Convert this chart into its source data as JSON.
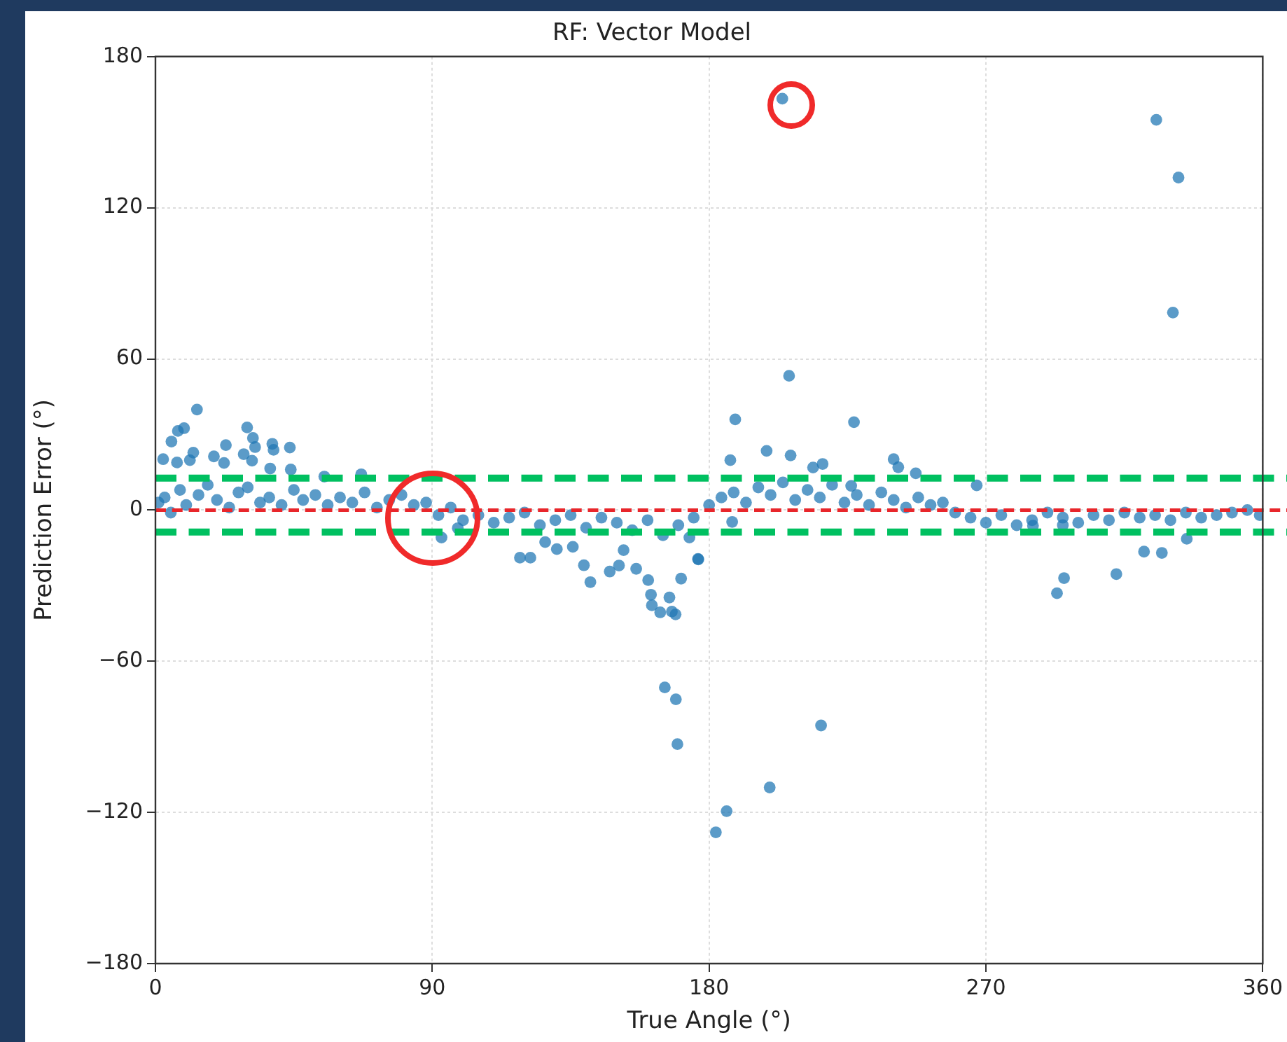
{
  "chart_data": {
    "type": "scatter",
    "title": "RF: Vector Model",
    "xlabel": "True Angle (°)",
    "ylabel": "Prediction Error (°)",
    "xlim": [
      0,
      360
    ],
    "xticks": [
      0,
      90,
      180,
      270,
      360
    ],
    "ylim": [
      -180,
      180
    ],
    "yticks": [
      {
        "value": -180,
        "label": "−180"
      },
      {
        "value": -120,
        "label": "−120"
      },
      {
        "value": -60,
        "label": "−60"
      },
      0,
      60,
      120,
      180
    ],
    "grid": true,
    "legend": false,
    "marker": "circle",
    "series": [
      {
        "color": "#1f77b4",
        "x": [
          203.8,
          325.4,
          332.6,
          330.8,
          206,
          188.5,
          227.1,
          13.5,
          165.6,
          169.2,
          169.7,
          216.4,
          185.7,
          182.2,
          199.7,
          293.1,
          295.4,
          312.4,
          321.4,
          327.2,
          335.3,
          267,
          198.7,
          206.5,
          186.9,
          213.8,
          216.9,
          240,
          241.5,
          247.2,
          226.2,
          176.4,
          187.5,
          285.3,
          295,
          5.2,
          7.3,
          9.3,
          2.5,
          29.8,
          31.7,
          32.4,
          22.9,
          38,
          38.4,
          43.7,
          11.2,
          19,
          28.7,
          22.3,
          7,
          12.3,
          31.4,
          37.3,
          44,
          66.9,
          54.9,
          118.5,
          121.9,
          126.7,
          130.5,
          135.7,
          139.3,
          141.4,
          147.7,
          150.7,
          152.2,
          156.3,
          160.2,
          161.1,
          161.4,
          164.1,
          167.1,
          167.9,
          169.1,
          170.9,
          176.5,
          173.6,
          93,
          98.3,
          1,
          3,
          5,
          8,
          10,
          14,
          17,
          20,
          24,
          27,
          30,
          34,
          37,
          41,
          45,
          48,
          52,
          56,
          60,
          64,
          68,
          72,
          76,
          80,
          84,
          88,
          92,
          96,
          100,
          105,
          110,
          115,
          120,
          125,
          130,
          135,
          140,
          145,
          150,
          155,
          160,
          165,
          170,
          175,
          180,
          184,
          188,
          192,
          196,
          200,
          204,
          208,
          212,
          216,
          220,
          224,
          228,
          232,
          236,
          240,
          244,
          248,
          252,
          256,
          260,
          265,
          270,
          275,
          280,
          285,
          290,
          295,
          300,
          305,
          310,
          315,
          320,
          325,
          330,
          335,
          340,
          345,
          350,
          355,
          359
        ],
        "values": [
          163.3,
          154.9,
          132,
          78.4,
          53.3,
          36,
          34.9,
          39.9,
          -70.4,
          -75.1,
          -92.9,
          -85.5,
          -119.5,
          -127.9,
          -110.1,
          -33,
          -27,
          -25.4,
          -16.5,
          -17,
          -11.4,
          9.8,
          23.5,
          21.7,
          19.8,
          16.9,
          18.3,
          20.2,
          17,
          14.6,
          9.6,
          -19.4,
          -4.7,
          -6.2,
          -6,
          27.2,
          31.4,
          32.5,
          20.2,
          32.8,
          28.6,
          25,
          25.8,
          26.3,
          23.9,
          24.8,
          19.8,
          21.3,
          22.2,
          18.7,
          18.9,
          22.8,
          19.6,
          16.5,
          16.1,
          14.2,
          13.3,
          -18.9,
          -18.9,
          -12.7,
          -15.5,
          -14.6,
          -21.9,
          -28.6,
          -24.4,
          -22,
          -15.9,
          -23.3,
          -27.8,
          -33.6,
          -37.8,
          -40.6,
          -34.7,
          -40.3,
          -41.4,
          -27.2,
          -19.6,
          -10.9,
          -10.9,
          -7.2,
          3,
          5,
          -1,
          8,
          2,
          6,
          10,
          4,
          1,
          7,
          9,
          3,
          5,
          2,
          8,
          4,
          6,
          2,
          5,
          3,
          7,
          1,
          4,
          6,
          2,
          3,
          -2,
          1,
          -4,
          -2,
          -5,
          -3,
          -1,
          -6,
          -4,
          -2,
          -7,
          -3,
          -5,
          -8,
          -4,
          -10,
          -6,
          -3,
          2,
          5,
          7,
          3,
          9,
          6,
          11,
          4,
          8,
          5,
          10,
          3,
          6,
          2,
          7,
          4,
          1,
          5,
          2,
          3,
          -1,
          -3,
          -5,
          -2,
          -6,
          -4,
          -1,
          -3,
          -5,
          -2,
          -4,
          -1,
          -3,
          -2,
          -4,
          -1,
          -3,
          -2,
          -1,
          0,
          -2
        ]
      }
    ],
    "ref_lines": [
      {
        "axis": "y",
        "value": 0,
        "color": "#e8262b",
        "line_style": "dashed"
      },
      {
        "axis": "y",
        "value": 12.7,
        "color": "#00c060",
        "line_style": "dashed"
      },
      {
        "axis": "y",
        "value": -8.7,
        "color": "#00c060",
        "line_style": "dashed"
      }
    ]
  }
}
